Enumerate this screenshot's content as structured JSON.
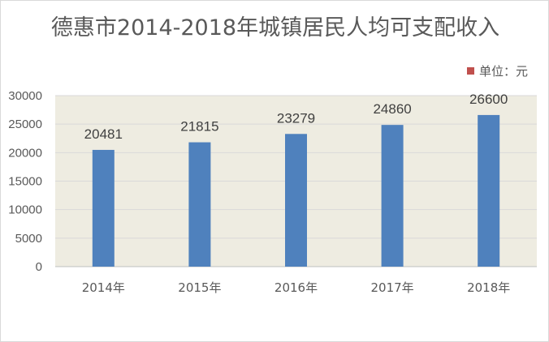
{
  "chart_data": {
    "type": "bar",
    "title": "德惠市2014-2018年城镇居民人均可支配收入",
    "categories": [
      "2014年",
      "2015年",
      "2016年",
      "2017年",
      "2018年"
    ],
    "series": [
      {
        "name": "单位：元",
        "values": [
          20481,
          21815,
          23279,
          24860,
          26600
        ],
        "color": "#4f81bd"
      }
    ],
    "yticks": [
      "0",
      "5000",
      "10000",
      "15000",
      "20000",
      "25000",
      "30000"
    ],
    "ylim": [
      0,
      30000
    ],
    "grid": true,
    "legend": "top-right",
    "legend_color": "#c0504d",
    "plot_background": "#eeece1"
  }
}
